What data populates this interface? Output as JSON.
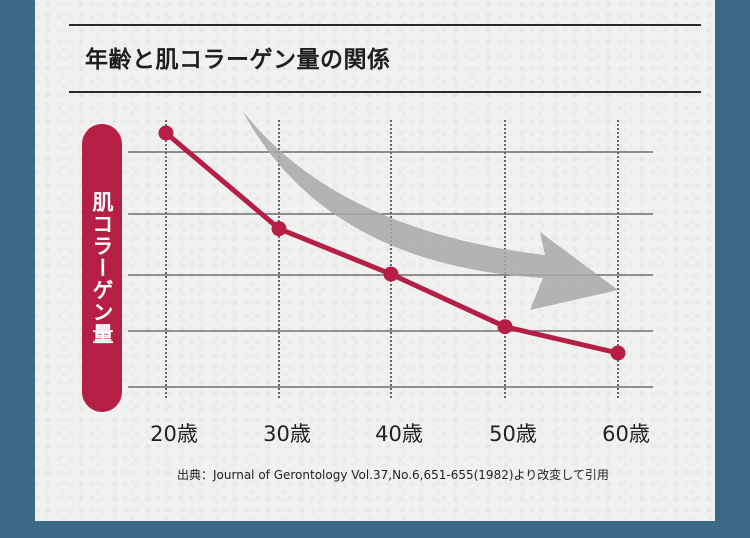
{
  "title": "年齢と肌コラーゲン量の関係",
  "y_axis_label": "肌コラーゲン量",
  "source": "出典：Journal of Gerontology Vol.37,No.6,651-655(1982)より改変して引用",
  "colors": {
    "background": "#3a6a86",
    "paper": "#f1f1f0",
    "accent": "#b51f45",
    "arrow": "#a8a8a8",
    "gridline": "#555555"
  },
  "chart_data": {
    "type": "line",
    "title": "年齢と肌コラーゲン量の関係",
    "xlabel": "",
    "ylabel": "肌コラーゲン量",
    "categories": [
      "20歳",
      "30歳",
      "40歳",
      "50歳",
      "60歳"
    ],
    "series": [
      {
        "name": "肌コラーゲン量",
        "values": [
          100,
          60,
          41,
          19,
          8
        ]
      }
    ],
    "y_units": "relative (no numeric ticks shown)",
    "ylim": [
      0,
      105
    ],
    "grid": {
      "horizontal": "solid",
      "vertical": "dotted"
    },
    "annotations": [
      "gray curved arrow indicating decreasing trend"
    ],
    "legend": "none"
  },
  "x_ticks": [
    "20歳",
    "30歳",
    "40歳",
    "50歳",
    "60歳"
  ]
}
